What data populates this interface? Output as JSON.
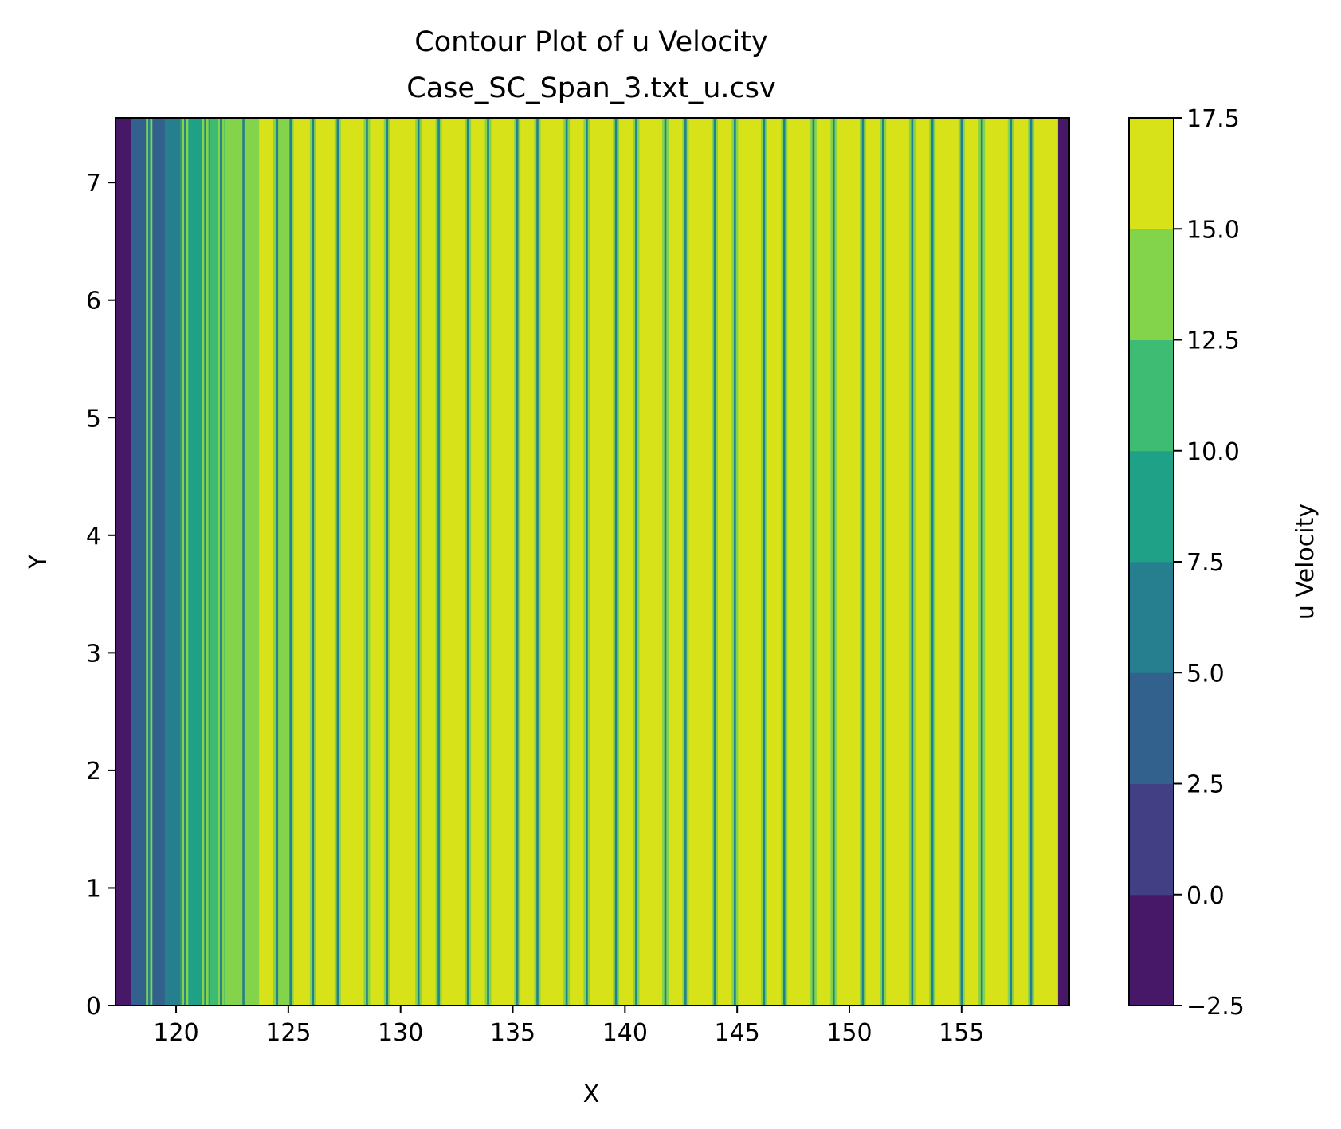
{
  "chart_data": {
    "type": "heatmap",
    "subtype": "filled-contour",
    "title": "Contour Plot of u Velocity",
    "subtitle": "Case_SC_Span_3.txt_u.csv",
    "xlabel": "X",
    "ylabel": "Y",
    "colorbar_label": "u Velocity",
    "xlim": [
      117.3,
      159.8
    ],
    "ylim": [
      0,
      7.55
    ],
    "x_ticks": [
      120,
      125,
      130,
      135,
      140,
      145,
      150,
      155
    ],
    "y_ticks": [
      0,
      1,
      2,
      3,
      4,
      5,
      6,
      7
    ],
    "levels": [
      -2.5,
      0.0,
      2.5,
      5.0,
      7.5,
      10.0,
      12.5,
      15.0,
      17.5
    ],
    "level_labels": [
      "−2.5",
      "0.0",
      "2.5",
      "5.0",
      "7.5",
      "10.0",
      "12.5",
      "15.0",
      "17.5"
    ],
    "level_colors": [
      "#471868",
      "#423f85",
      "#32618d",
      "#257f8e",
      "#1fa187",
      "#3fbc73",
      "#84d44b",
      "#d8e219"
    ],
    "colormap": "viridis",
    "grid": false,
    "inlet_bands": [
      {
        "x0": 117.3,
        "x1": 118.0,
        "level": 0
      },
      {
        "x0": 118.0,
        "x1": 119.5,
        "level": 2
      },
      {
        "x0": 119.5,
        "x1": 120.2,
        "level": 3
      },
      {
        "x0": 120.2,
        "x1": 121.5,
        "level": 4
      },
      {
        "x0": 121.5,
        "x1": 122.2,
        "level": 5
      },
      {
        "x0": 122.2,
        "x1": 123.7,
        "level": 6
      },
      {
        "x0": 123.7,
        "x1": 124.3,
        "level": 7
      },
      {
        "x0": 124.3,
        "x1": 125.1,
        "level": 6
      }
    ],
    "outlet_band": {
      "x0": 159.3,
      "x1": 159.8,
      "level": 0
    },
    "wake_lines_x": [
      118.8,
      120.4,
      121.3,
      122.0,
      123.0,
      124.5,
      125.1,
      126.1,
      127.2,
      128.5,
      129.4,
      130.8,
      131.7,
      133.0,
      133.9,
      135.2,
      136.1,
      137.4,
      138.3,
      139.6,
      140.5,
      141.8,
      142.7,
      144.0,
      144.9,
      146.2,
      147.1,
      148.4,
      149.3,
      150.6,
      151.5,
      152.8,
      153.7,
      155.0,
      155.9,
      157.2,
      158.1
    ]
  }
}
